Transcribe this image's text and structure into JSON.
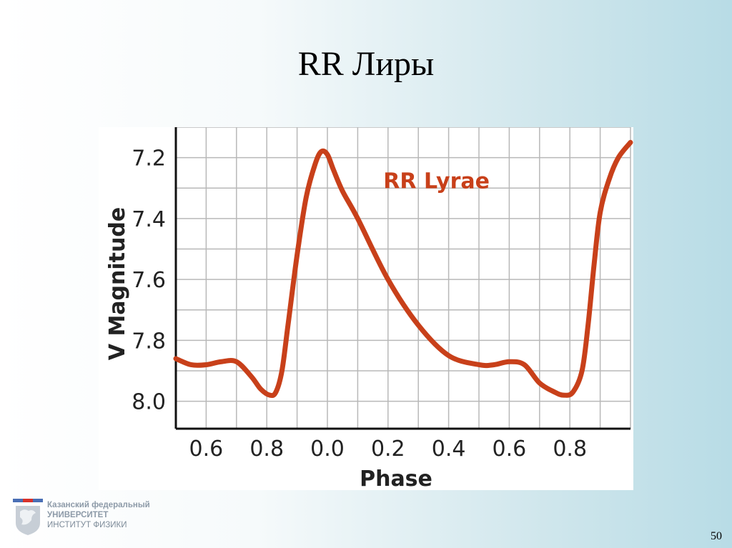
{
  "slide": {
    "title": "RR Лиры",
    "page_number": "50"
  },
  "footer": {
    "line1": "Казанский федеральный",
    "line2": "УНИВЕРСИТЕТ",
    "line3": "ИНСТИТУТ ФИЗИКИ"
  },
  "colors": {
    "curve": "#c8401a",
    "annotation": "#c8401a",
    "grid": "#b8b8b8",
    "axis": "#111111"
  },
  "chart_data": {
    "type": "line",
    "title": "",
    "annotation": "RR Lyrae",
    "xlabel": "Phase",
    "ylabel": "V Magnitude",
    "y_inverted": true,
    "ylim": [
      7.1,
      8.09
    ],
    "y_ticks": [
      7.2,
      7.4,
      7.6,
      7.8,
      8.0
    ],
    "y_tick_labels": [
      "7.2",
      "7.4",
      "7.6",
      "7.8",
      "8.0"
    ],
    "x_tick_labels": [
      "0.6",
      "0.8",
      "0.0",
      "0.2",
      "0.4",
      "0.6",
      "0.8"
    ],
    "grid": true,
    "legend": "none",
    "series": [
      {
        "x": [
          0.5,
          0.55,
          0.6,
          0.65,
          0.7,
          0.75,
          0.78,
          0.81,
          0.83,
          0.85,
          0.87,
          0.9,
          0.93,
          0.96,
          0.98,
          1.0,
          1.02,
          1.05,
          1.1,
          1.2,
          1.3,
          1.4,
          1.5,
          1.55,
          1.6,
          1.65,
          1.7,
          1.75,
          1.78,
          1.81,
          1.84,
          1.86,
          1.88,
          1.9,
          1.93,
          1.96,
          2.0
        ],
        "y": [
          7.86,
          7.88,
          7.88,
          7.87,
          7.87,
          7.92,
          7.96,
          7.98,
          7.97,
          7.9,
          7.75,
          7.52,
          7.33,
          7.22,
          7.18,
          7.19,
          7.24,
          7.31,
          7.4,
          7.6,
          7.75,
          7.85,
          7.88,
          7.88,
          7.87,
          7.88,
          7.94,
          7.97,
          7.98,
          7.97,
          7.9,
          7.75,
          7.55,
          7.38,
          7.27,
          7.2,
          7.15
        ]
      }
    ]
  }
}
